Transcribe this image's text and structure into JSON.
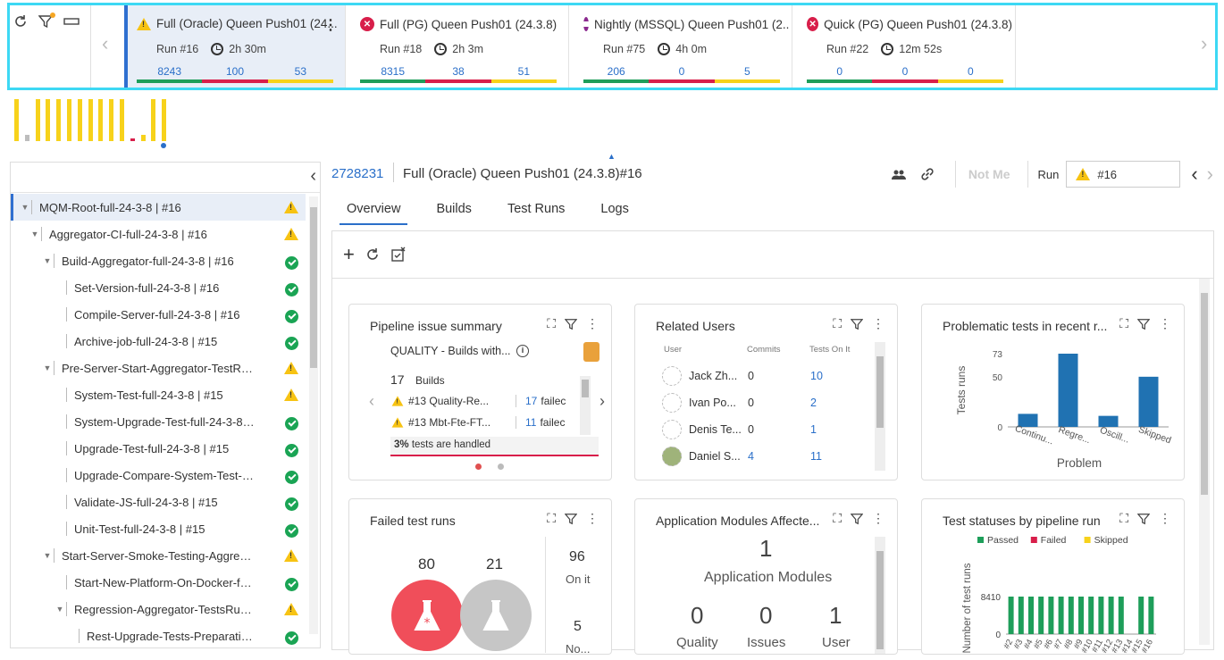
{
  "top_strip": {
    "cards": [
      {
        "title": "Full (Oracle) Queen Push01 (24...",
        "status": "warning",
        "run": "Run #16",
        "duration": "2h 30m",
        "counts": [
          "8243",
          "100",
          "53"
        ],
        "active": true
      },
      {
        "title": "Full (PG) Queen Push01 (24.3.8)",
        "status": "failed",
        "run": "Run #18",
        "duration": "2h 3m",
        "counts": [
          "8315",
          "38",
          "51"
        ]
      },
      {
        "title": "Nightly (MSSQL) Queen Push01 (2...",
        "status": "stopped",
        "run": "Run #75",
        "duration": "4h 0m",
        "counts": [
          "206",
          "0",
          "5"
        ]
      },
      {
        "title": "Quick (PG) Queen Push01 (24.3.8)",
        "status": "failed",
        "run": "Run #22",
        "duration": "12m 52s",
        "counts": [
          "0",
          "0",
          "0"
        ]
      }
    ],
    "bar_colors": {
      "passed": "#1e9e5a",
      "failed": "#d81e4a",
      "skipped": "#f7d21b"
    },
    "icons": [
      "refresh-icon",
      "filter-icon",
      "collapse-icon",
      "more-vert-icon",
      "chevron-left-icon",
      "chevron-right-icon"
    ]
  },
  "mini_histogram": {
    "colors": {
      "passed": "#f7d21b",
      "neutral": "#bdbdbd",
      "failed": "#d81e4a",
      "marker": "#2a6fc9"
    },
    "bars": [
      {
        "level": 0.95,
        "color": "passed"
      },
      {
        "level": 0.15,
        "color": "neutral"
      },
      {
        "level": 0.95,
        "color": "passed"
      },
      {
        "level": 0.95,
        "color": "passed"
      },
      {
        "level": 0.95,
        "color": "passed"
      },
      {
        "level": 0.95,
        "color": "passed"
      },
      {
        "level": 0.95,
        "color": "passed"
      },
      {
        "level": 0.95,
        "color": "passed"
      },
      {
        "level": 0.95,
        "color": "passed"
      },
      {
        "level": 0.95,
        "color": "passed"
      },
      {
        "level": 0.95,
        "color": "passed"
      },
      {
        "level": 0.05,
        "color": "failed"
      },
      {
        "level": 0.15,
        "color": "passed"
      },
      {
        "level": 0.95,
        "color": "passed"
      },
      {
        "level": 0.95,
        "color": "passed"
      }
    ]
  },
  "tree": {
    "rows": [
      {
        "label": "MQM-Root-full-24-3-8 | #16",
        "status": "warning",
        "indent": 0,
        "caret": true,
        "selected": true
      },
      {
        "label": "Aggregator-CI-full-24-3-8 | #16",
        "status": "warning",
        "indent": 1,
        "caret": true
      },
      {
        "label": "Build-Aggregator-full-24-3-8 | #16",
        "status": "passed",
        "indent": 2,
        "caret": true
      },
      {
        "label": "Set-Version-full-24-3-8 | #16",
        "status": "passed",
        "indent": 3
      },
      {
        "label": "Compile-Server-full-24-3-8 | #16",
        "status": "passed",
        "indent": 3
      },
      {
        "label": "Archive-job-full-24-3-8 | #15",
        "status": "passed",
        "indent": 3
      },
      {
        "label": "Pre-Server-Start-Aggregator-TestRunner...",
        "status": "warning",
        "indent": 2,
        "caret": true
      },
      {
        "label": "System-Test-full-24-3-8 | #15",
        "status": "warning",
        "indent": 3
      },
      {
        "label": "System-Upgrade-Test-full-24-3-8 | #15",
        "status": "passed",
        "indent": 3
      },
      {
        "label": "Upgrade-Test-full-24-3-8 | #15",
        "status": "passed",
        "indent": 3
      },
      {
        "label": "Upgrade-Compare-System-Test-full-...",
        "status": "passed",
        "indent": 3
      },
      {
        "label": "Validate-JS-full-24-3-8 | #15",
        "status": "passed",
        "indent": 3
      },
      {
        "label": "Unit-Test-full-24-3-8 | #15",
        "status": "passed",
        "indent": 3
      },
      {
        "label": "Start-Server-Smoke-Testing-Aggregato...",
        "status": "warning",
        "indent": 2,
        "caret": true
      },
      {
        "label": "Start-New-Platform-On-Docker-full-2...",
        "status": "passed",
        "indent": 3
      },
      {
        "label": "Regression-Aggregator-TestsRunner...",
        "status": "warning",
        "indent": 3,
        "caret": true
      },
      {
        "label": "Rest-Upgrade-Tests-Preparation-f...",
        "status": "passed",
        "indent": 4
      }
    ]
  },
  "header": {
    "id": "2728231",
    "title": "Full (Oracle) Queen Push01 (24.3.8)#16",
    "not_me": "Not Me",
    "run_label": "Run",
    "run_value": "#16"
  },
  "tabs": [
    "Overview",
    "Builds",
    "Test Runs",
    "Logs"
  ],
  "widgets": {
    "pipeline_issue": {
      "title": "Pipeline issue summary",
      "subtitle": "QUALITY - Builds with...",
      "count": "17",
      "count_label": "Builds",
      "items": [
        {
          "name": "#13 Quality-Re...",
          "value": "17",
          "suffix": "failec"
        },
        {
          "name": "#13 Mbt-Fte-FT...",
          "value": "11",
          "suffix": "failec"
        }
      ],
      "handled_pct": "3%",
      "handled_text": "tests are handled"
    },
    "related_users": {
      "title": "Related Users",
      "columns": [
        "User",
        "Commits",
        "Tests On It"
      ],
      "rows": [
        {
          "name": "Jack Zh...",
          "commits": "0",
          "tests": "10"
        },
        {
          "name": "Ivan Po...",
          "commits": "0",
          "tests": "2"
        },
        {
          "name": "Denis Te...",
          "commits": "0",
          "tests": "1"
        },
        {
          "name": "Daniel S...",
          "commits": "4",
          "tests": "11"
        }
      ]
    },
    "problematic": {
      "title": "Problematic tests in recent r..."
    },
    "failed_runs": {
      "title": "Failed test runs",
      "new_count": "80",
      "other_count": "21",
      "on_it_count": "96",
      "on_it_label": "On it",
      "bottom_count": "5",
      "bottom_label": "No..."
    },
    "app_modules": {
      "title": "Application Modules Affecte...",
      "count": "1",
      "count_label": "Application Modules",
      "quality": "0",
      "issues": "0",
      "user": "1",
      "quality_label": "Quality",
      "issues_label": "Issues",
      "user_label": "User"
    },
    "test_statuses": {
      "title": "Test statuses by pipeline run"
    }
  },
  "chart_data": [
    {
      "type": "bar",
      "title": "Problematic tests in recent r...",
      "xlabel": "Problem",
      "ylabel": "Tests runs",
      "categories": [
        "Continu...",
        "Regre...",
        "Oscill...",
        "Skipped"
      ],
      "values": [
        13,
        73,
        11,
        50
      ],
      "yticks": [
        0,
        50,
        73
      ],
      "ylim": [
        0,
        73
      ],
      "color": "#2072b2"
    },
    {
      "type": "bar",
      "title": "Test statuses by pipeline run",
      "ylabel": "Number of test runs",
      "categories": [
        "#2",
        "#3",
        "#4",
        "#5",
        "#6",
        "#7",
        "#8",
        "#9",
        "#10",
        "#11",
        "#12",
        "#13",
        "#14",
        "#15",
        "#16"
      ],
      "series": [
        {
          "name": "Passed",
          "color": "#1e9e5a",
          "values": [
            8410,
            8410,
            8410,
            8410,
            8410,
            8410,
            8410,
            8410,
            8410,
            8410,
            8410,
            8410,
            0,
            8410,
            8410
          ]
        },
        {
          "name": "Failed",
          "color": "#d81e4a",
          "values": [
            0,
            0,
            0,
            0,
            0,
            0,
            0,
            0,
            0,
            0,
            0,
            0,
            0,
            0,
            0
          ]
        },
        {
          "name": "Skipped",
          "color": "#f7d21b",
          "values": [
            0,
            0,
            0,
            0,
            0,
            0,
            0,
            0,
            0,
            0,
            0,
            0,
            0,
            0,
            0
          ]
        }
      ],
      "yticks": [
        0,
        8410
      ],
      "ylim": [
        0,
        8410
      ]
    }
  ]
}
